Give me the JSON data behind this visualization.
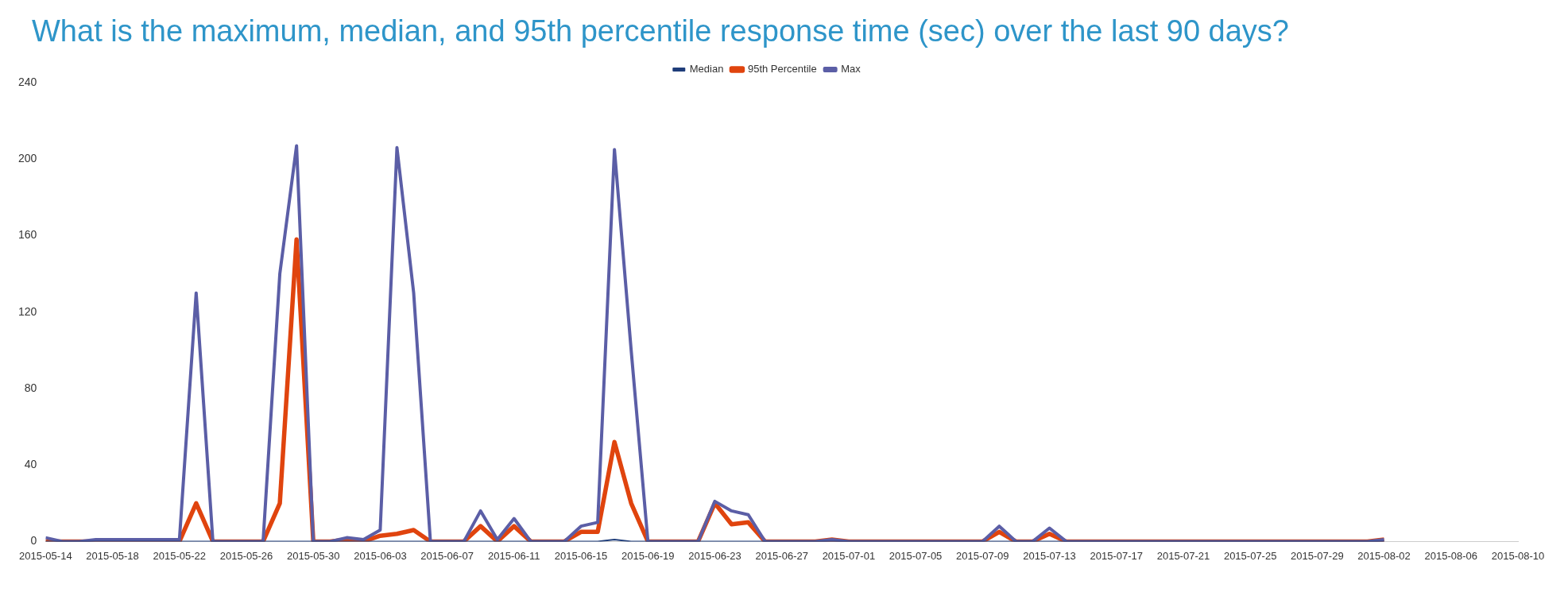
{
  "chart_data": {
    "type": "line",
    "title": "What is the maximum, median, and 95th percentile response time (sec) over the last 90 days?",
    "x": [
      "2015-05-14",
      "2015-05-15",
      "2015-05-16",
      "2015-05-17",
      "2015-05-18",
      "2015-05-19",
      "2015-05-20",
      "2015-05-21",
      "2015-05-22",
      "2015-05-23",
      "2015-05-24",
      "2015-05-25",
      "2015-05-26",
      "2015-05-27",
      "2015-05-28",
      "2015-05-29",
      "2015-05-30",
      "2015-05-31",
      "2015-06-01",
      "2015-06-02",
      "2015-06-03",
      "2015-06-04",
      "2015-06-05",
      "2015-06-06",
      "2015-06-07",
      "2015-06-08",
      "2015-06-09",
      "2015-06-10",
      "2015-06-11",
      "2015-06-12",
      "2015-06-13",
      "2015-06-14",
      "2015-06-15",
      "2015-06-16",
      "2015-06-17",
      "2015-06-18",
      "2015-06-19",
      "2015-06-20",
      "2015-06-21",
      "2015-06-22",
      "2015-06-23",
      "2015-06-24",
      "2015-06-25",
      "2015-06-26",
      "2015-06-27",
      "2015-06-28",
      "2015-06-29",
      "2015-06-30",
      "2015-07-01",
      "2015-07-02",
      "2015-07-03",
      "2015-07-04",
      "2015-07-05",
      "2015-07-06",
      "2015-07-07",
      "2015-07-08",
      "2015-07-09",
      "2015-07-10",
      "2015-07-11",
      "2015-07-12",
      "2015-07-13",
      "2015-07-14",
      "2015-07-15",
      "2015-07-16",
      "2015-07-17",
      "2015-07-18",
      "2015-07-19",
      "2015-07-20",
      "2015-07-21",
      "2015-07-22",
      "2015-07-23",
      "2015-07-24",
      "2015-07-25",
      "2015-07-26",
      "2015-07-27",
      "2015-07-28",
      "2015-07-29",
      "2015-07-30",
      "2015-07-31",
      "2015-08-01",
      "2015-08-02"
    ],
    "series": [
      {
        "name": "Median",
        "color": "#1f3d7a",
        "values": [
          0,
          0,
          0,
          0,
          0,
          0,
          0,
          0,
          0,
          0,
          0,
          0,
          0,
          0,
          0,
          0,
          0,
          0,
          0,
          0,
          0,
          0,
          0,
          0,
          0,
          0,
          0,
          0,
          0,
          0,
          0,
          0,
          0,
          0,
          1,
          0,
          0,
          0,
          0,
          0,
          0,
          0,
          0,
          0,
          0,
          0,
          0,
          0,
          0,
          0,
          0,
          0,
          0,
          0,
          0,
          0,
          0,
          0,
          0,
          0,
          0,
          0,
          0,
          0,
          0,
          0,
          0,
          0,
          0,
          0,
          0,
          0,
          0,
          0,
          0,
          0,
          0,
          0,
          0,
          0,
          0
        ]
      },
      {
        "name": "95th Percentile",
        "color": "#e0440e",
        "values": [
          0,
          0,
          0,
          0,
          0,
          0,
          0,
          0,
          0,
          20,
          0,
          0,
          0,
          0,
          20,
          158,
          0,
          0,
          1,
          0,
          3,
          4,
          6,
          0,
          0,
          0,
          8,
          0,
          8,
          0,
          0,
          0,
          5,
          5,
          52,
          20,
          0,
          0,
          0,
          0,
          20,
          9,
          10,
          0,
          0,
          0,
          0,
          1,
          0,
          0,
          0,
          0,
          0,
          0,
          0,
          0,
          0,
          5,
          0,
          0,
          4,
          0,
          0,
          0,
          0,
          0,
          0,
          0,
          0,
          0,
          0,
          0,
          0,
          0,
          0,
          0,
          0,
          0,
          0,
          0,
          1
        ]
      },
      {
        "name": "Max",
        "color": "#5b5ea6",
        "values": [
          2,
          0,
          0,
          1,
          1,
          1,
          1,
          1,
          1,
          130,
          0,
          0,
          0,
          0,
          140,
          207,
          0,
          0,
          2,
          1,
          6,
          206,
          130,
          0,
          0,
          0,
          16,
          1,
          12,
          0,
          0,
          0,
          8,
          10,
          205,
          100,
          0,
          0,
          0,
          0,
          21,
          16,
          14,
          0,
          0,
          0,
          0,
          1,
          0,
          0,
          0,
          0,
          0,
          0,
          0,
          0,
          0,
          8,
          0,
          0,
          7,
          0,
          0,
          0,
          0,
          0,
          0,
          0,
          0,
          0,
          0,
          0,
          0,
          0,
          0,
          0,
          0,
          0,
          0,
          0,
          1
        ]
      }
    ],
    "xlim": [
      "2015-05-14",
      "2015-08-10"
    ],
    "xticks": [
      "2015-05-14",
      "2015-05-18",
      "2015-05-22",
      "2015-05-26",
      "2015-05-30",
      "2015-06-03",
      "2015-06-07",
      "2015-06-11",
      "2015-06-15",
      "2015-06-19",
      "2015-06-23",
      "2015-06-27",
      "2015-07-01",
      "2015-07-05",
      "2015-07-09",
      "2015-07-13",
      "2015-07-17",
      "2015-07-21",
      "2015-07-25",
      "2015-07-29",
      "2015-08-02",
      "2015-08-06",
      "2015-08-10"
    ],
    "ylim": [
      0,
      240
    ],
    "yticks": [
      0,
      40,
      80,
      120,
      160,
      200,
      240
    ],
    "grid": false,
    "legend": "top",
    "marker": "none",
    "line_style": "solid"
  }
}
